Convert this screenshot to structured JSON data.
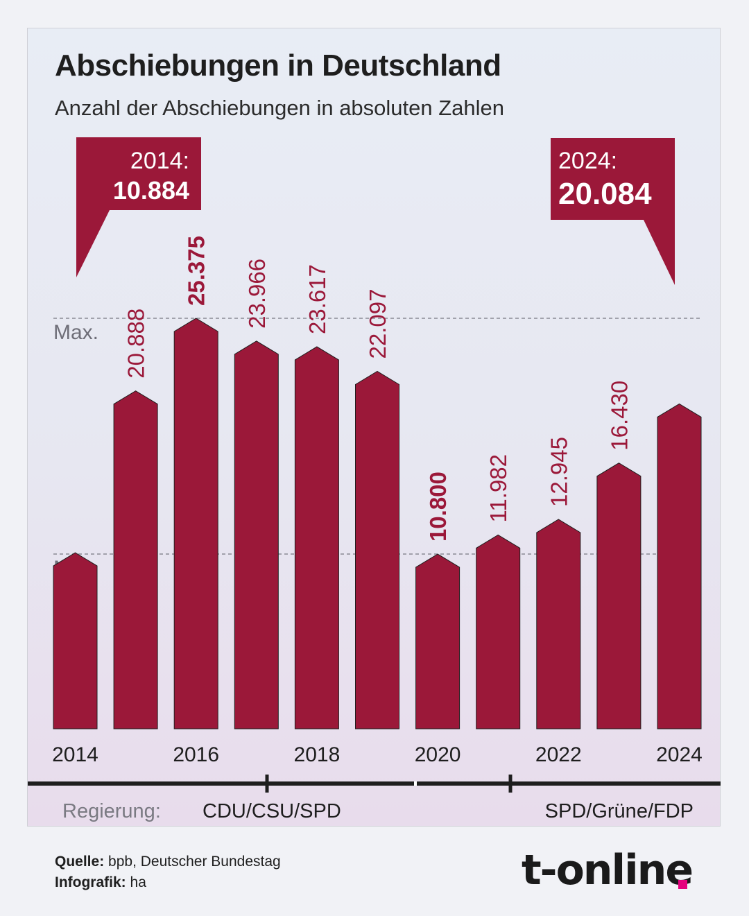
{
  "header": {
    "title": "Abschiebungen in Deutschland",
    "subtitle": "Anzahl der Abschiebungen in absoluten Zahlen"
  },
  "callouts": [
    {
      "year_label": "2014:",
      "value_label": "10.884"
    },
    {
      "year_label": "2024:",
      "value_label": "20.084"
    }
  ],
  "government": {
    "label": "Regierung:",
    "periods": [
      {
        "name": "CDU/CSU/SPD"
      },
      {
        "name": "SPD/Grüne/FDP"
      }
    ]
  },
  "footer": {
    "source_label": "Quelle:",
    "source_text": "bpb, Deutscher Bundestag",
    "credit_label": "Infografik:",
    "credit_text": "ha"
  },
  "brand": {
    "logo_text": "t-online"
  },
  "colors": {
    "bar": "#9b1839",
    "accent": "#e5007d",
    "text": "#1e1e1e",
    "reference": "#6e6e78"
  },
  "chart_data": {
    "type": "bar",
    "title": "Abschiebungen in Deutschland",
    "subtitle": "Anzahl der Abschiebungen in absoluten Zahlen",
    "xlabel": "",
    "ylabel": "",
    "ylim": [
      0,
      25375
    ],
    "grid": false,
    "categories": [
      "2014",
      "2015",
      "2016",
      "2017",
      "2018",
      "2019",
      "2020",
      "2021",
      "2022",
      "2023",
      "2024"
    ],
    "values": [
      10884,
      20888,
      25375,
      23966,
      23617,
      22097,
      10800,
      11982,
      12945,
      16430,
      20084
    ],
    "value_labels": [
      "",
      "20.888",
      "25.375",
      "23.966",
      "23.617",
      "22.097",
      "10.800",
      "11.982",
      "12.945",
      "16.430",
      ""
    ],
    "bold_value_labels": [
      "25.375",
      "10.800"
    ],
    "x_tick_labels": [
      "2014",
      "2016",
      "2018",
      "2020",
      "2022",
      "2024"
    ],
    "reference_lines": [
      {
        "label": "Max.",
        "value": 25375
      },
      {
        "label": "Min.",
        "value": 10800
      }
    ]
  }
}
